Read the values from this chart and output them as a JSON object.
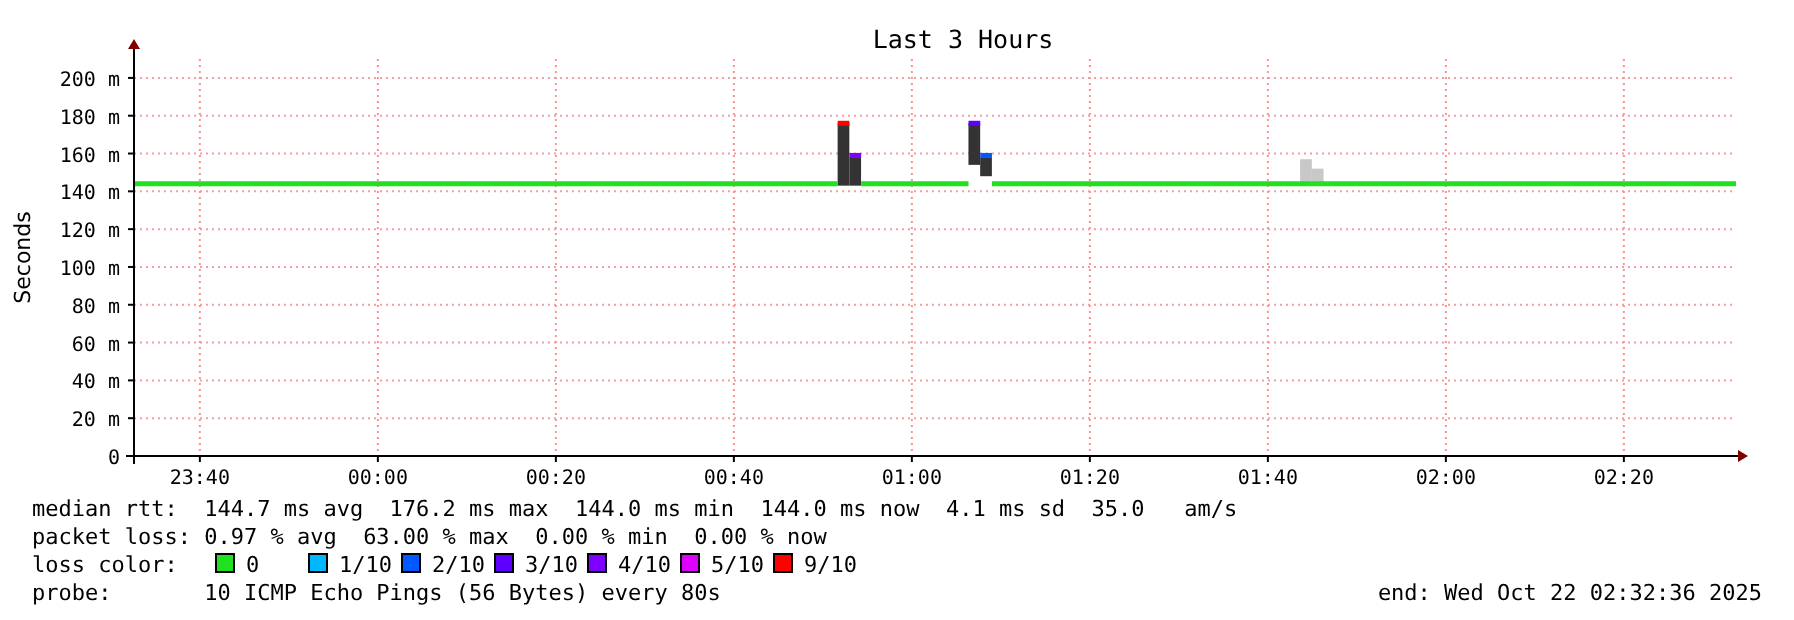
{
  "chart_data": {
    "type": "line",
    "title": "Last 3 Hours",
    "ylabel": "Seconds",
    "xlim": [
      "2025-10-21T23:32:36",
      "2025-10-22T02:32:36"
    ],
    "xticks": [
      {
        "value": "2025-10-21T23:40",
        "label": "23:40"
      },
      {
        "value": "2025-10-22T00:00",
        "label": "00:00"
      },
      {
        "value": "2025-10-22T00:20",
        "label": "00:20"
      },
      {
        "value": "2025-10-22T00:40",
        "label": "00:40"
      },
      {
        "value": "2025-10-22T01:00",
        "label": "01:00"
      },
      {
        "value": "2025-10-22T01:20",
        "label": "01:20"
      },
      {
        "value": "2025-10-22T01:40",
        "label": "01:40"
      },
      {
        "value": "2025-10-22T02:00",
        "label": "02:00"
      },
      {
        "value": "2025-10-22T02:20",
        "label": "02:20"
      }
    ],
    "ylim": [
      0,
      210
    ],
    "yticks": [
      0,
      {
        "value": 20,
        "label": "20 m"
      },
      {
        "value": 40,
        "label": "40 m"
      },
      {
        "value": 60,
        "label": "60 m"
      },
      {
        "value": 80,
        "label": "80 m"
      },
      {
        "value": 100,
        "label": "100 m"
      },
      {
        "value": 120,
        "label": "120 m"
      },
      {
        "value": 140,
        "label": "140 m"
      },
      {
        "value": 160,
        "label": "160 m"
      },
      {
        "value": 180,
        "label": "180 m"
      },
      {
        "value": 200,
        "label": "200 m"
      }
    ],
    "grid": true,
    "legend": "bottom",
    "legend_title": "loss color:",
    "series": [
      {
        "type": "bar",
        "colors": [
          "#333333",
          "#333333",
          "#333333",
          "#333333",
          "#c8c8c8",
          "#c8c8c8"
        ],
        "x": [
          "2025-10-22T00:52:19",
          "2025-10-22T00:53:38",
          "2025-10-22T01:07:01",
          "2025-10-22T01:08:20",
          "2025-10-22T01:44:17",
          "2025-10-22T01:45:36"
        ],
        "base": [
          143,
          143,
          154,
          148,
          144,
          144
        ],
        "values": [
          33,
          15,
          22,
          10,
          13,
          8
        ]
      },
      {
        "name": "0",
        "color": "#20e020",
        "x": [
          "2025-10-21T23:32:36",
          "2025-10-22T00:51:40",
          "2025-10-22T00:52:59",
          "2025-10-22T00:54:18",
          "2025-10-22T01:06:22",
          "2025-10-22T01:07:41",
          "2025-10-22T01:09:00",
          "2025-10-22T02:32:36"
        ],
        "values": [
          144,
          144,
          null,
          144,
          144,
          null,
          144,
          144
        ]
      },
      {
        "name": "1/10",
        "color": "#00b8ff"
      },
      {
        "name": "2/10",
        "color": "#0059ff",
        "x": [
          "2025-10-22T01:07:41",
          "2025-10-22T01:09:00"
        ],
        "values": [
          159,
          159
        ]
      },
      {
        "name": "3/10",
        "color": "#5e00ff",
        "x": [
          "2025-10-22T01:06:22",
          "2025-10-22T01:07:41"
        ],
        "values": [
          176,
          176
        ]
      },
      {
        "name": "4/10",
        "color": "#7e00ff",
        "x": [
          "2025-10-22T00:52:59",
          "2025-10-22T00:54:18"
        ],
        "values": [
          159,
          159
        ]
      },
      {
        "name": "5/10",
        "color": "#dd00ff"
      },
      {
        "name": "9/10",
        "color": "#ff0000",
        "x": [
          "2025-10-22T00:51:40",
          "2025-10-22T00:52:59"
        ],
        "values": [
          176,
          176
        ]
      }
    ],
    "annotations": [
      "median rtt:  144.7 ms avg  176.2 ms max  144.0 ms min  144.0 ms now  4.1 ms sd  35.0   am/s",
      "packet loss: 0.97 % avg  63.00 % max  0.00 % min  0.00 % now",
      "probe:       10 ICMP Echo Pings (56 Bytes) every 80s",
      "end: Wed Oct 22 02:32:36 2025"
    ]
  }
}
